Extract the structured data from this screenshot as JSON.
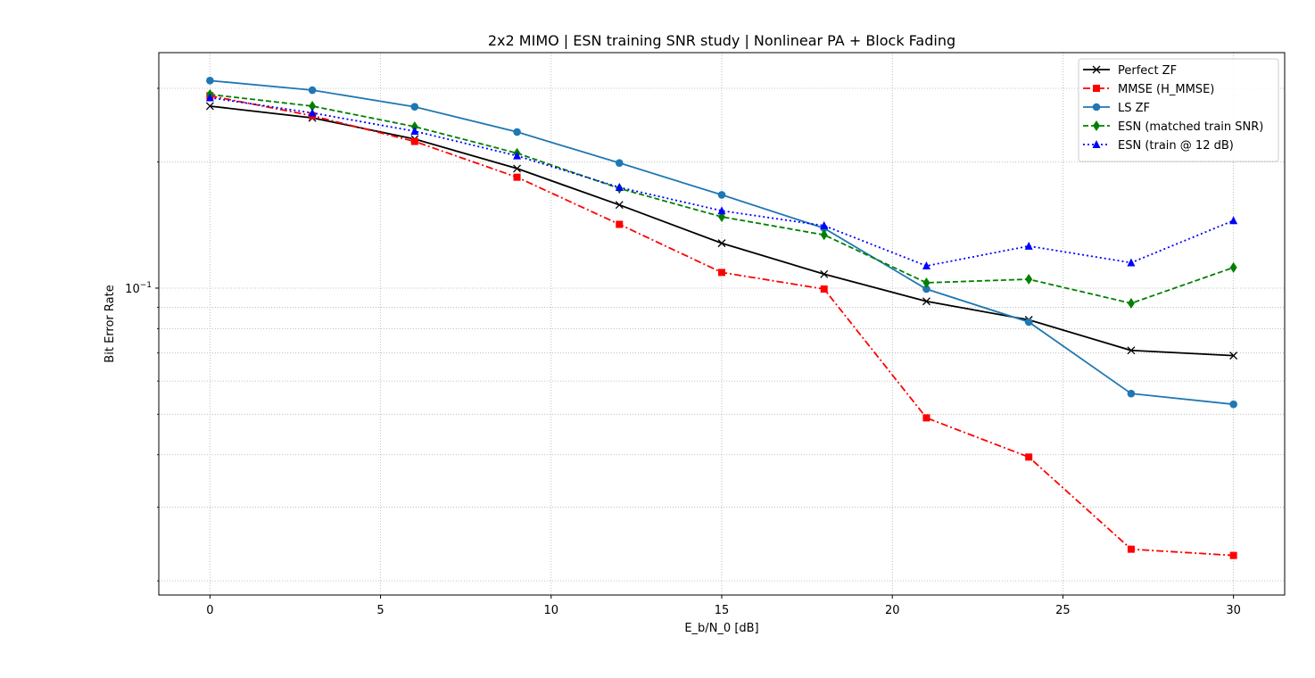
{
  "chart_data": {
    "type": "line",
    "title": "2x2 MIMO | ESN training SNR study | Nonlinear PA + Block Fading",
    "xlabel": "E_b/N_0 [dB]",
    "ylabel": "Bit Error Rate",
    "yscale": "log",
    "xlim": [
      -1.5,
      31.5
    ],
    "ylim": [
      0.0185,
      0.365
    ],
    "x_ticks": [
      0,
      5,
      10,
      15,
      20,
      25,
      30
    ],
    "x_tick_labels": [
      "0",
      "5",
      "10",
      "15",
      "20",
      "25",
      "30"
    ],
    "y_major_ticks": [
      0.1
    ],
    "y_major_labels": [
      "10"
    ],
    "y_major_label_exponent": "−1",
    "y_minor_ticks": [
      0.02,
      0.03,
      0.04,
      0.05,
      0.06,
      0.07,
      0.08,
      0.09,
      0.2,
      0.3
    ],
    "grid": true,
    "legend_position": "top-right",
    "x": [
      0,
      3,
      6,
      9,
      12,
      15,
      18,
      21,
      24,
      27,
      30
    ],
    "series": [
      {
        "name": "Perfect ZF",
        "color": "#000000",
        "dash": "solid",
        "marker": "x",
        "values": [
          0.272,
          0.255,
          0.227,
          0.193,
          0.158,
          0.128,
          0.108,
          0.093,
          0.084,
          0.071,
          0.069
        ]
      },
      {
        "name": "MMSE (H_MMSE)",
        "color": "#ff0000",
        "dash": "dashdot",
        "marker": "square",
        "values": [
          0.288,
          0.258,
          0.224,
          0.184,
          0.142,
          0.109,
          0.0995,
          0.049,
          0.0395,
          0.0238,
          0.023
        ]
      },
      {
        "name": "LS ZF",
        "color": "#1f77b4",
        "dash": "solid",
        "marker": "circle",
        "values": [
          0.313,
          0.297,
          0.271,
          0.236,
          0.199,
          0.167,
          0.139,
          0.0995,
          0.083,
          0.056,
          0.0528
        ]
      },
      {
        "name": "ESN (matched train SNR)",
        "color": "#008000",
        "dash": "dashed",
        "marker": "diamond",
        "values": [
          0.29,
          0.272,
          0.243,
          0.21,
          0.173,
          0.148,
          0.134,
          0.103,
          0.105,
          0.092,
          0.112
        ]
      },
      {
        "name": "ESN (train @ 12 dB)",
        "color": "#0000ff",
        "dash": "dotted",
        "marker": "triangle",
        "values": [
          0.285,
          0.262,
          0.237,
          0.207,
          0.174,
          0.153,
          0.141,
          0.113,
          0.126,
          0.115,
          0.145
        ]
      }
    ]
  }
}
